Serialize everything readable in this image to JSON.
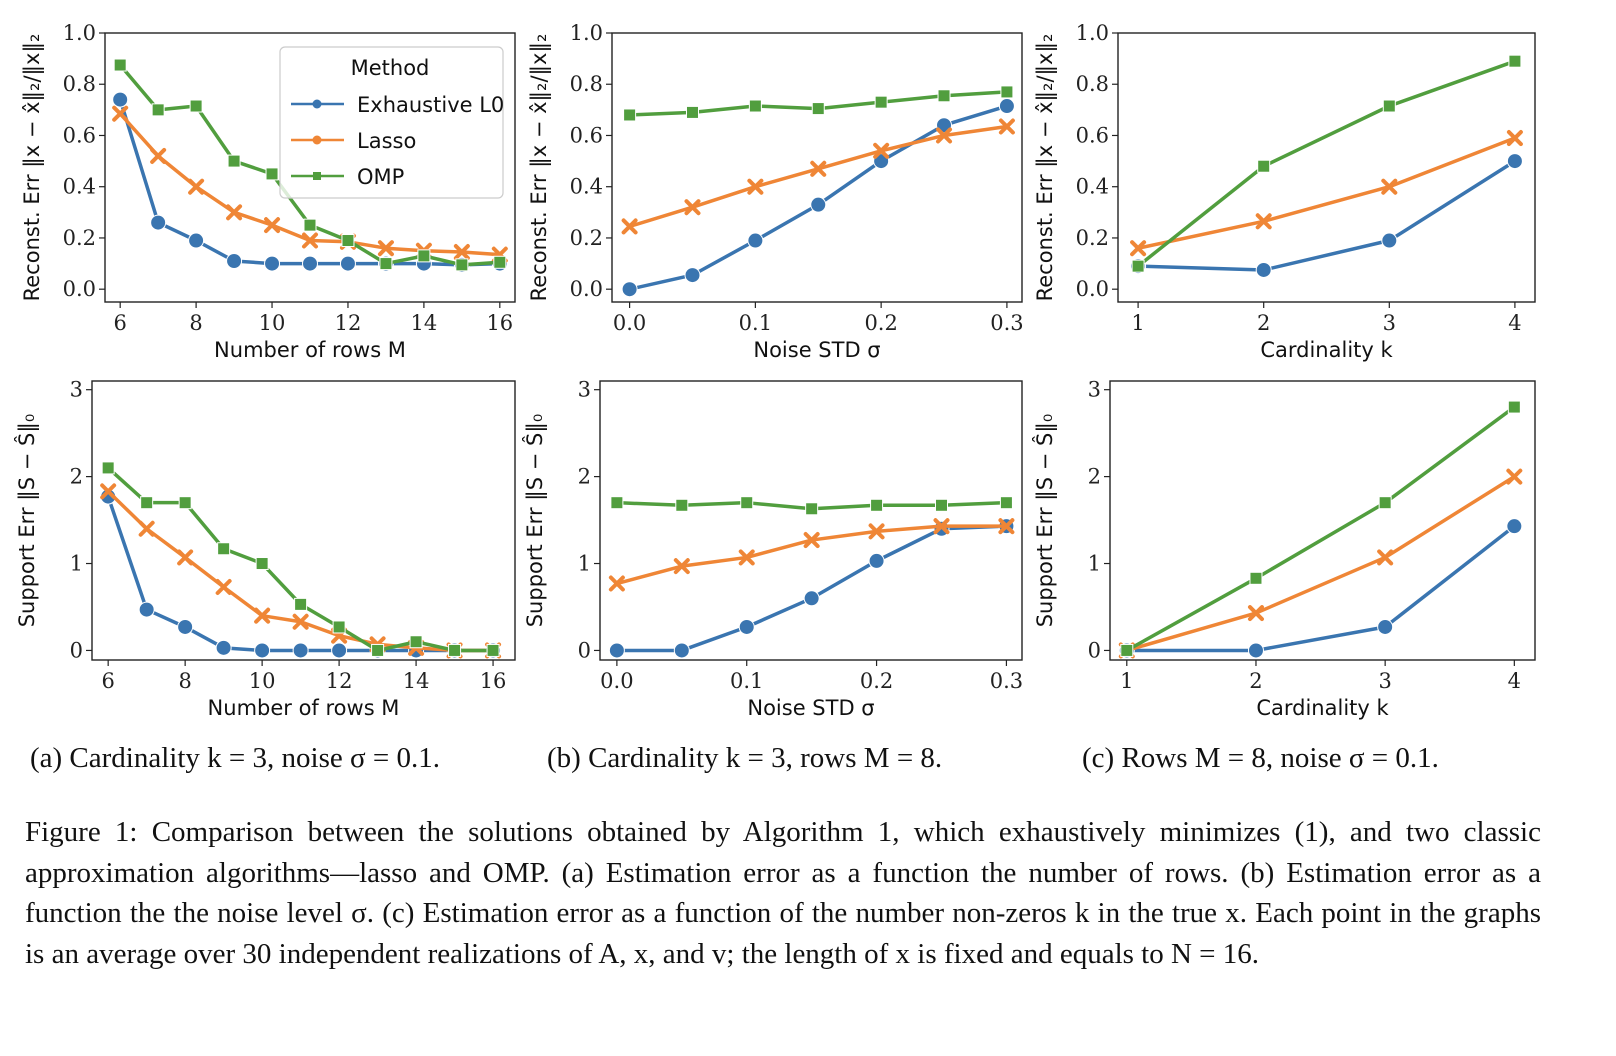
{
  "colors": {
    "Exhaustive L0": "#3a75b0",
    "Lasso": "#ef8636",
    "OMP": "#519e3e"
  },
  "legend": {
    "title": "Method",
    "entries": [
      "Exhaustive L0",
      "Lasso",
      "OMP"
    ],
    "placement": "top-right"
  },
  "chart_data": [
    {
      "type": "line",
      "panel": "a-top",
      "xlabel": "Number of rows M",
      "ylabel": "Reconst. Err ‖x − x̂‖₂/‖x‖₂",
      "x": [
        6,
        7,
        8,
        9,
        10,
        11,
        12,
        13,
        14,
        15,
        16
      ],
      "xticks": [
        6,
        8,
        10,
        12,
        14,
        16
      ],
      "xlim": [
        5.6,
        16.4
      ],
      "ylim": [
        -0.05,
        1.0
      ],
      "yticks": [
        0.0,
        0.2,
        0.4,
        0.6,
        0.8,
        1.0
      ],
      "series": [
        {
          "name": "Exhaustive L0",
          "marker": "circle",
          "values": [
            0.74,
            0.26,
            0.19,
            0.11,
            0.1,
            0.1,
            0.1,
            0.1,
            0.1,
            0.095,
            0.1
          ]
        },
        {
          "name": "Lasso",
          "marker": "x",
          "values": [
            0.685,
            0.52,
            0.4,
            0.3,
            0.25,
            0.19,
            0.185,
            0.16,
            0.15,
            0.145,
            0.135
          ]
        },
        {
          "name": "OMP",
          "marker": "square",
          "values": [
            0.875,
            0.7,
            0.715,
            0.5,
            0.45,
            0.25,
            0.19,
            0.1,
            0.13,
            0.095,
            0.105
          ]
        }
      ]
    },
    {
      "type": "line",
      "panel": "b-top",
      "xlabel": "Noise STD σ",
      "ylabel": "Reconst. Err ‖x − x̂‖₂/‖x‖₂",
      "x": [
        0.0,
        0.05,
        0.1,
        0.15,
        0.2,
        0.25,
        0.3
      ],
      "xticks": [
        0.0,
        0.1,
        0.2,
        0.3
      ],
      "xlim": [
        -0.014,
        0.312
      ],
      "ylim": [
        -0.05,
        1.0
      ],
      "yticks": [
        0.0,
        0.2,
        0.4,
        0.6,
        0.8,
        1.0
      ],
      "series": [
        {
          "name": "Exhaustive L0",
          "marker": "circle",
          "values": [
            0.0,
            0.055,
            0.19,
            0.33,
            0.5,
            0.64,
            0.715
          ]
        },
        {
          "name": "Lasso",
          "marker": "x",
          "values": [
            0.245,
            0.32,
            0.4,
            0.47,
            0.54,
            0.6,
            0.635
          ]
        },
        {
          "name": "OMP",
          "marker": "square",
          "values": [
            0.68,
            0.69,
            0.715,
            0.705,
            0.73,
            0.755,
            0.77
          ]
        }
      ]
    },
    {
      "type": "line",
      "panel": "c-top",
      "xlabel": "Cardinality k",
      "ylabel": "Reconst. Err ‖x − x̂‖₂/‖x‖₂",
      "x": [
        1,
        2,
        3,
        4
      ],
      "xticks": [
        1,
        2,
        3,
        4
      ],
      "xlim": [
        0.84,
        4.16
      ],
      "ylim": [
        -0.05,
        1.0
      ],
      "yticks": [
        0.0,
        0.2,
        0.4,
        0.6,
        0.8,
        1.0
      ],
      "series": [
        {
          "name": "Exhaustive L0",
          "marker": "circle",
          "values": [
            0.09,
            0.075,
            0.19,
            0.5
          ]
        },
        {
          "name": "Lasso",
          "marker": "x",
          "values": [
            0.16,
            0.265,
            0.4,
            0.59
          ]
        },
        {
          "name": "OMP",
          "marker": "square",
          "values": [
            0.09,
            0.48,
            0.715,
            0.89
          ]
        }
      ]
    },
    {
      "type": "line",
      "panel": "a-bottom",
      "xlabel": "Number of rows M",
      "ylabel": "Support Err ‖S − Ŝ‖₀",
      "x": [
        6,
        7,
        8,
        9,
        10,
        11,
        12,
        13,
        14,
        15,
        16
      ],
      "xticks": [
        6,
        8,
        10,
        12,
        14,
        16
      ],
      "xlim": [
        5.58,
        16.57
      ],
      "ylim": [
        -0.11,
        3.1
      ],
      "yticks": [
        0,
        1,
        2,
        3
      ],
      "series": [
        {
          "name": "Exhaustive L0",
          "marker": "circle",
          "values": [
            1.77,
            0.47,
            0.27,
            0.03,
            0,
            0,
            0,
            0,
            0,
            0,
            0
          ]
        },
        {
          "name": "Lasso",
          "marker": "x",
          "values": [
            1.83,
            1.4,
            1.07,
            0.73,
            0.4,
            0.33,
            0.17,
            0.07,
            0.03,
            0,
            0
          ]
        },
        {
          "name": "OMP",
          "marker": "square",
          "values": [
            2.1,
            1.7,
            1.7,
            1.17,
            1.0,
            0.53,
            0.27,
            0,
            0.1,
            0,
            0
          ]
        }
      ]
    },
    {
      "type": "line",
      "panel": "b-bottom",
      "xlabel": "Noise STD σ",
      "ylabel": "Support Err ‖S − Ŝ‖₀",
      "x": [
        0.0,
        0.05,
        0.1,
        0.15,
        0.2,
        0.25,
        0.3
      ],
      "xticks": [
        0.0,
        0.1,
        0.2,
        0.3
      ],
      "xlim": [
        -0.013,
        0.312
      ],
      "ylim": [
        -0.11,
        3.1
      ],
      "yticks": [
        0,
        1,
        2,
        3
      ],
      "series": [
        {
          "name": "Exhaustive L0",
          "marker": "circle",
          "values": [
            0,
            0,
            0.27,
            0.6,
            1.03,
            1.4,
            1.43
          ]
        },
        {
          "name": "Lasso",
          "marker": "x",
          "values": [
            0.77,
            0.97,
            1.07,
            1.27,
            1.37,
            1.43,
            1.43
          ]
        },
        {
          "name": "OMP",
          "marker": "square",
          "values": [
            1.7,
            1.67,
            1.7,
            1.63,
            1.67,
            1.67,
            1.7
          ]
        }
      ]
    },
    {
      "type": "line",
      "panel": "c-bottom",
      "xlabel": "Cardinality k",
      "ylabel": "Support Err ‖S − Ŝ‖₀",
      "x": [
        1,
        2,
        3,
        4
      ],
      "xticks": [
        1,
        2,
        3,
        4
      ],
      "xlim": [
        0.87,
        4.16
      ],
      "ylim": [
        -0.11,
        3.1
      ],
      "yticks": [
        0,
        1,
        2,
        3
      ],
      "series": [
        {
          "name": "Exhaustive L0",
          "marker": "circle",
          "values": [
            0,
            0,
            0.27,
            1.43
          ]
        },
        {
          "name": "Lasso",
          "marker": "x",
          "values": [
            0,
            0.43,
            1.07,
            2.0
          ]
        },
        {
          "name": "OMP",
          "marker": "square",
          "values": [
            0,
            0.83,
            1.7,
            2.8
          ]
        }
      ]
    }
  ],
  "subcaptions": [
    "(a) Cardinality k = 3, noise σ = 0.1.",
    "(b) Cardinality k = 3, rows M = 8.",
    "(c) Rows M = 8, noise σ = 0.1."
  ],
  "caption": "Figure 1: Comparison between the solutions obtained by Algorithm 1, which exhaustively minimizes (1), and two classic approximation algorithms—lasso and OMP. (a) Estimation error as a function the number of rows. (b) Estimation error as a function the the noise level σ. (c) Estimation error as a function of the number non-zeros k in the true x. Each point in the graphs is an average over 30 independent realizations of A, x, and v; the length of x is fixed and equals to N = 16."
}
